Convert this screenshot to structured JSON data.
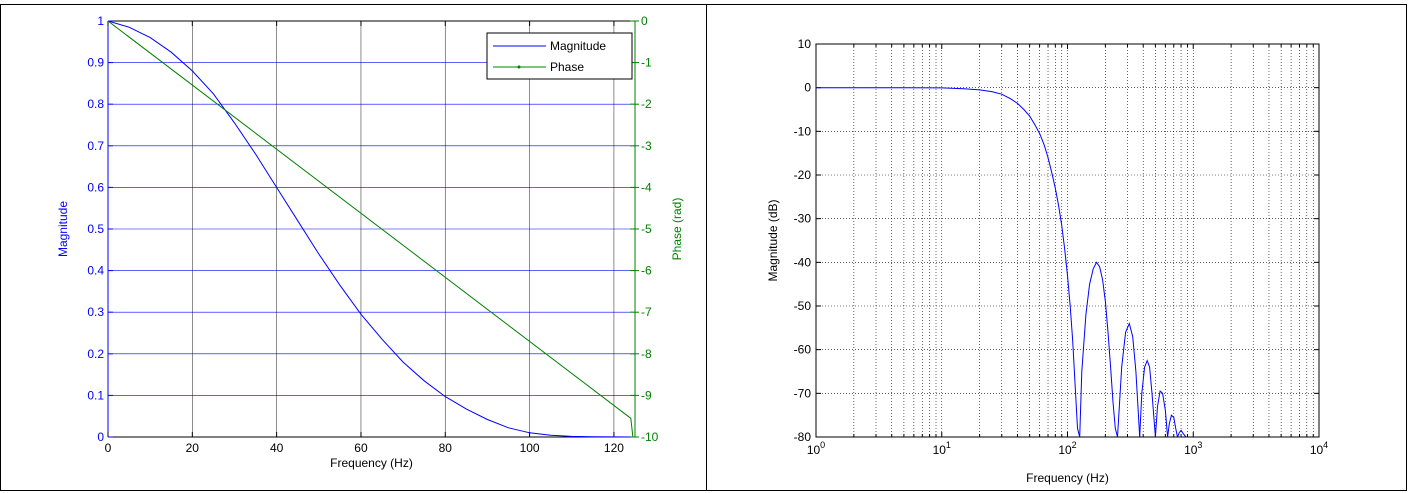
{
  "colors": {
    "magnitude": "#0000ff",
    "phase": "#008000",
    "grid": "#000000",
    "axis": "#000000"
  },
  "chart_data": [
    {
      "type": "line",
      "xlabel": "Frequency (Hz)",
      "ylabel_left": "Magnitude",
      "ylabel_right": "Phase (rad)",
      "xlim": [
        0,
        125
      ],
      "ylim_left": [
        0,
        1
      ],
      "ylim_right": [
        -10,
        0
      ],
      "xticks": [
        0,
        20,
        40,
        60,
        80,
        100,
        120
      ],
      "yticks_left": [
        0,
        0.1,
        0.2,
        0.3,
        0.4,
        0.5,
        0.6,
        0.7,
        0.8,
        0.9,
        1
      ],
      "yticks_right": [
        0,
        -1,
        -2,
        -3,
        -4,
        -5,
        -6,
        -7,
        -8,
        -9,
        -10
      ],
      "grid": true,
      "legend_position": "top-right",
      "series": [
        {
          "name": "Magnitude",
          "axis": "left",
          "color": "#0000ff",
          "x": [
            0,
            5,
            10,
            15,
            20,
            25,
            30,
            35,
            40,
            45,
            50,
            55,
            60,
            65,
            70,
            75,
            80,
            85,
            90,
            95,
            100,
            105,
            110,
            115,
            120,
            124
          ],
          "y": [
            1.0,
            0.985,
            0.96,
            0.925,
            0.88,
            0.825,
            0.755,
            0.68,
            0.6,
            0.52,
            0.44,
            0.365,
            0.295,
            0.235,
            0.18,
            0.135,
            0.097,
            0.067,
            0.042,
            0.022,
            0.01,
            0.004,
            0.0015,
            0.0005,
            0.0002,
            0.0
          ]
        },
        {
          "name": "Phase",
          "axis": "right",
          "color": "#008000",
          "x": [
            0,
            124,
            124.5
          ],
          "y": [
            0,
            -9.55,
            -10
          ]
        }
      ]
    },
    {
      "type": "line",
      "xlabel": "Frequency (Hz)",
      "ylabel": "Magnitude (dB)",
      "xscale": "log",
      "xlim": [
        1,
        10000
      ],
      "ylim": [
        -80,
        10
      ],
      "xtick_exponents": [
        "0",
        "1",
        "2",
        "3",
        "4"
      ],
      "xtick_base": "10",
      "yticks": [
        10,
        0,
        -10,
        -20,
        -30,
        -40,
        -50,
        -60,
        -70,
        -80
      ],
      "grid": true,
      "series": [
        {
          "color": "#0000ff",
          "x": [
            1,
            5,
            10,
            15,
            20,
            25,
            30,
            35,
            40,
            45,
            50,
            55,
            60,
            65,
            70,
            75,
            80,
            85,
            90,
            95,
            100,
            105,
            110,
            115,
            120,
            125
          ],
          "y": [
            0,
            0,
            -0.05,
            -0.25,
            -0.5,
            -0.9,
            -1.5,
            -2.5,
            -3.6,
            -5,
            -6.5,
            -8.5,
            -10.5,
            -13,
            -16,
            -19.5,
            -23,
            -27,
            -31.5,
            -37,
            -43,
            -50,
            -58,
            -68,
            -78,
            -80
          ]
        },
        {
          "color": "#0000ff",
          "x": [
            125,
            130,
            140,
            150,
            160,
            170,
            180,
            190,
            200,
            210,
            220,
            230,
            240,
            250
          ],
          "y": [
            -80,
            -65,
            -52,
            -45,
            -41.5,
            -40,
            -41,
            -44,
            -49,
            -56,
            -64,
            -72,
            -78,
            -80
          ]
        },
        {
          "color": "#0000ff",
          "x": [
            250,
            270,
            290,
            310,
            330,
            350,
            375
          ],
          "y": [
            -80,
            -64,
            -56,
            -54,
            -57,
            -65,
            -80
          ]
        },
        {
          "color": "#0000ff",
          "x": [
            375,
            390,
            410,
            430,
            450,
            470,
            500
          ],
          "y": [
            -80,
            -70,
            -64,
            -62.5,
            -64,
            -70,
            -80
          ]
        },
        {
          "color": "#0000ff",
          "x": [
            500,
            520,
            545,
            570,
            600,
            625
          ],
          "y": [
            -80,
            -73,
            -69.5,
            -70,
            -74,
            -80
          ]
        },
        {
          "color": "#0000ff",
          "x": [
            625,
            645,
            670,
            700,
            725,
            750
          ],
          "y": [
            -80,
            -77,
            -75,
            -75.5,
            -78,
            -80
          ]
        },
        {
          "color": "#0000ff",
          "x": [
            750,
            775,
            800,
            830,
            875
          ],
          "y": [
            -80,
            -79,
            -78.5,
            -79.2,
            -80
          ]
        }
      ]
    }
  ]
}
